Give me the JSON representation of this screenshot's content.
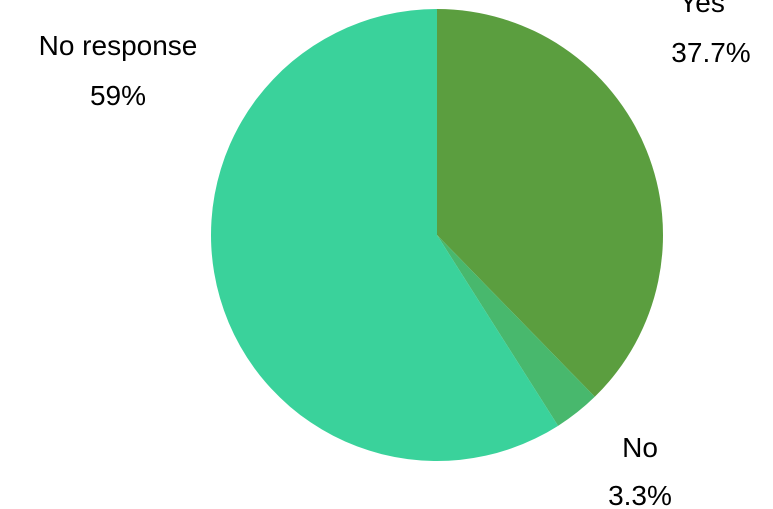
{
  "chart_data": {
    "type": "pie",
    "slices": [
      {
        "label": "Yes",
        "value": 37.7,
        "value_label": "37.7%",
        "color": "#5b9e3f"
      },
      {
        "label": "No",
        "value": 3.3,
        "value_label": "3.3%",
        "color": "#48b86d"
      },
      {
        "label": "No response",
        "value": 59,
        "value_label": "59%",
        "color": "#3ad29b"
      }
    ],
    "start_angle": "12 o'clock",
    "direction": "clockwise"
  }
}
